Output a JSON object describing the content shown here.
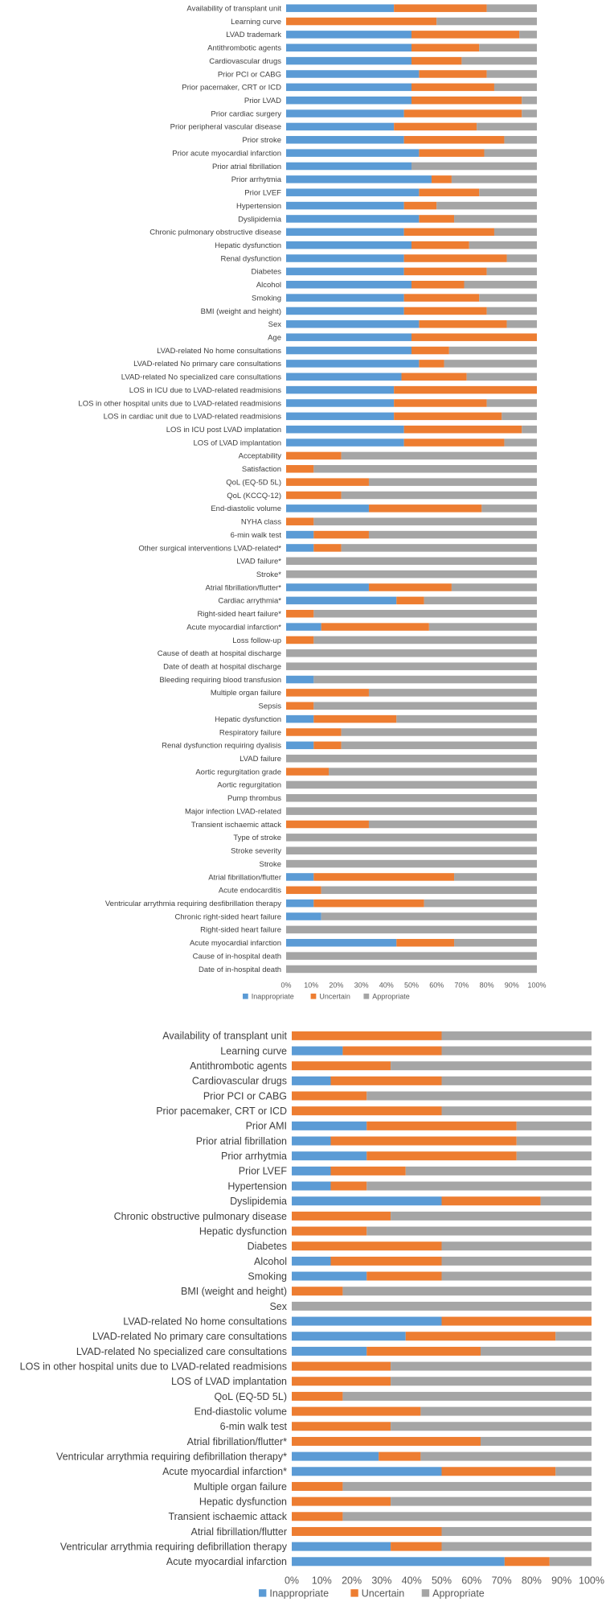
{
  "chart_data": [
    {
      "type": "bar",
      "orientation": "horizontal",
      "stacked": true,
      "percent": true,
      "xlim": [
        0,
        100
      ],
      "x_ticks": [
        "0%",
        "10%",
        "20%",
        "30%",
        "40%",
        "50%",
        "60%",
        "70%",
        "80%",
        "90%",
        "100%"
      ],
      "legend": {
        "position": "bottom",
        "entries": [
          "Inappropriate",
          "Uncertain",
          "Appropriate"
        ]
      },
      "colors": {
        "Inappropriate": "#5B9BD5",
        "Uncertain": "#ED7D31",
        "Appropriate": "#A5A5A5"
      },
      "categories": [
        "Availability of transplant unit",
        "Learning curve",
        "LVAD trademark",
        "Antithrombotic agents",
        "Cardiovascular drugs",
        "Prior PCI or CABG",
        "Prior pacemaker, CRT or ICD",
        "Prior LVAD",
        "Prior cardiac surgery",
        "Prior peripheral vascular disease",
        "Prior stroke",
        "Prior acute myocardial infarction",
        "Prior atrial fibrillation",
        "Prior arrhytmia",
        "Prior LVEF",
        "Hypertension",
        "Dyslipidemia",
        "Chronic pulmonary obstructive disease",
        "Hepatic dysfunction",
        "Renal dysfunction",
        "Diabetes",
        "Alcohol",
        "Smoking",
        "BMI (weight and height)",
        "Sex",
        "Age",
        "LVAD-related No home consultations",
        "LVAD-related No primary care consultations",
        "LVAD-related No specialized care consultations",
        "LOS in ICU due to LVAD-related readmisions",
        "LOS in other hospital units due to LVAD-related readmisions",
        "LOS in cardiac unit due to LVAD-related readmisions",
        "LOS in ICU post LVAD implatation",
        "LOS of LVAD implantation",
        "Acceptability",
        "Satisfaction",
        "QoL (EQ-5D 5L)",
        "QoL (KCCQ-12)",
        "End-diastolic volume",
        "NYHA class",
        "6-min walk test",
        "Other surgical interventions LVAD-related*",
        "LVAD failure*",
        "Stroke*",
        "Atrial fibrillation/flutter*",
        "Cardiac arrythmia*",
        "Right-sided heart failure*",
        "Acute myocardial infarction*",
        "Loss follow-up",
        "Cause of death at hospital discharge",
        "Date of death at hospital discharge",
        "Bleeding requiring blood transfusion",
        "Multiple organ failure",
        "Sepsis",
        "Hepatic dysfunction",
        "Respiratory failure",
        "Renal dysfunction requiring dyalisis",
        "LVAD failure",
        "Aortic regurgitation grade",
        "Aortic regurgitation",
        "Pump thrombus",
        "Major infection LVAD-related",
        "Transient ischaemic attack",
        "Type of stroke",
        "Stroke severity",
        "Stroke",
        "Atrial fibrillation/flutter",
        "Acute endocarditis",
        "Ventricular arrythmia requiring desfibrillation therapy",
        "Chronic right-sided heart failure",
        "Right-sided heart failure",
        "Acute myocardial infarction",
        "Cause of in-hospital death",
        "Date of in-hospital death"
      ],
      "series": [
        {
          "name": "Inappropriate",
          "values": [
            43,
            0,
            50,
            50,
            50,
            53,
            50,
            50,
            47,
            43,
            47,
            53,
            50,
            58,
            53,
            47,
            53,
            47,
            50,
            47,
            47,
            50,
            47,
            47,
            53,
            50,
            50,
            53,
            46,
            43,
            43,
            43,
            47,
            47,
            0,
            0,
            0,
            0,
            33,
            0,
            11,
            11,
            0,
            0,
            33,
            44,
            0,
            14,
            0,
            0,
            0,
            11,
            0,
            0,
            11,
            0,
            11,
            0,
            0,
            0,
            0,
            0,
            0,
            0,
            0,
            0,
            11,
            0,
            11,
            14,
            0,
            44,
            0,
            0
          ]
        },
        {
          "name": "Uncertain",
          "values": [
            37,
            60,
            43,
            27,
            20,
            27,
            33,
            44,
            47,
            33,
            40,
            26,
            0,
            8,
            24,
            13,
            14,
            36,
            23,
            41,
            33,
            21,
            30,
            33,
            35,
            50,
            15,
            10,
            26,
            57,
            37,
            43,
            47,
            40,
            22,
            11,
            33,
            22,
            45,
            11,
            22,
            11,
            0,
            0,
            33,
            11,
            11,
            43,
            11,
            0,
            0,
            0,
            33,
            11,
            33,
            22,
            11,
            0,
            17,
            0,
            0,
            0,
            33,
            0,
            0,
            0,
            56,
            14,
            44,
            0,
            0,
            23,
            0,
            0
          ]
        }
      ]
    },
    {
      "type": "bar",
      "orientation": "horizontal",
      "stacked": true,
      "percent": true,
      "xlim": [
        0,
        100
      ],
      "x_ticks": [
        "0%",
        "10%",
        "20%",
        "30%",
        "40%",
        "50%",
        "60%",
        "70%",
        "80%",
        "90%",
        "100%"
      ],
      "legend": {
        "position": "bottom",
        "entries": [
          "Inappropriate",
          "Uncertain",
          "Appropriate"
        ]
      },
      "colors": {
        "Inappropriate": "#5B9BD5",
        "Uncertain": "#ED7D31",
        "Appropriate": "#A5A5A5"
      },
      "categories": [
        "Availability of transplant unit",
        "Learning curve",
        "Antithrombotic agents",
        "Cardiovascular drugs",
        "Prior PCI or CABG",
        "Prior pacemaker, CRT or ICD",
        "Prior AMI",
        "Prior atrial fibrillation",
        "Prior arrhytmia",
        "Prior LVEF",
        "Hypertension",
        "Dyslipidemia",
        "Chronic obstructive pulmonary disease",
        "Hepatic dysfunction",
        "Diabetes",
        "Alcohol",
        "Smoking",
        "BMI (weight and height)",
        "Sex",
        "LVAD-related No home consultations",
        "LVAD-related No primary care consultations",
        "LVAD-related No specialized care consultations",
        "LOS in other hospital units due to LVAD-related readmisions",
        "LOS of LVAD implantation",
        "QoL (EQ-5D 5L)",
        "End-diastolic volume",
        "6-min walk test",
        "Atrial fibrillation/flutter*",
        "Ventricular arrythmia requiring defibrillation therapy*",
        "Acute myocardial infarction*",
        "Multiple organ failure",
        "Hepatic dysfunction",
        "Transient ischaemic attack",
        "Atrial fibrillation/flutter",
        "Ventricular arrythmia requiring defibrillation therapy",
        "Acute myocardial infarction"
      ],
      "series": [
        {
          "name": "Inappropriate",
          "values": [
            0,
            17,
            0,
            13,
            0,
            0,
            25,
            13,
            25,
            13,
            13,
            50,
            0,
            0,
            0,
            13,
            25,
            0,
            0,
            50,
            38,
            25,
            0,
            0,
            0,
            0,
            0,
            0,
            29,
            50,
            0,
            0,
            0,
            0,
            33,
            71
          ]
        },
        {
          "name": "Uncertain",
          "values": [
            50,
            33,
            33,
            37,
            25,
            50,
            50,
            62,
            50,
            25,
            12,
            33,
            33,
            25,
            50,
            37,
            25,
            17,
            0,
            50,
            50,
            38,
            33,
            33,
            17,
            43,
            33,
            63,
            14,
            38,
            17,
            33,
            17,
            50,
            17,
            15
          ]
        }
      ]
    }
  ]
}
